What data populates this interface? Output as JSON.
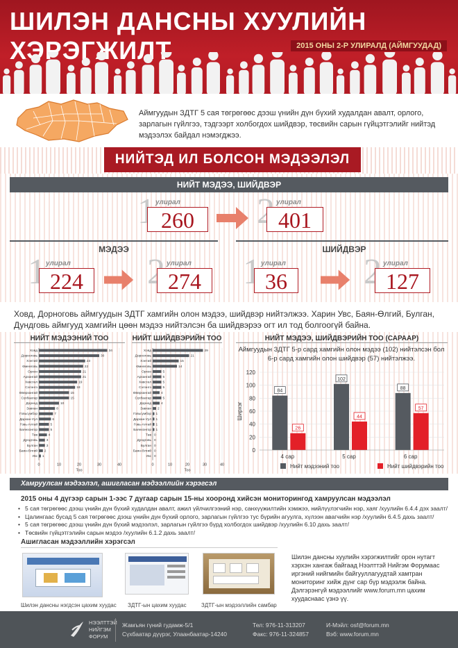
{
  "header": {
    "title": "ШИЛЭН ДАНСНЫ ХУУЛИЙН ХЭРЭГЖИЛТ",
    "subtitle": "2015 ОНЫ 2-Р УЛИРАЛД (АЙМГУУДАД)"
  },
  "intro": {
    "text": "Аймгуудын ЗДТГ 5 сая төгрөгөөс дээш үнийн дүн бүхий худалдан авалт, орлого, зарлагын гүйлгээ, тэдгээрт холбогдох шийдвэр, төсвийн сарын гүйцэтгэлийг нийтэд мэдээлэх байдал нэмэгджээ."
  },
  "banner": "НИЙТЭД ИЛ БОЛСОН МЭДЭЭЛЭЛ",
  "total": {
    "heading": "НИЙТ МЭДЭЭ, ШИЙДВЭР",
    "q1_digit": "1",
    "q2_digit": "2",
    "q_label": "улирал",
    "q1_value": "260",
    "q2_value": "401"
  },
  "news": {
    "heading": "МЭДЭЭ",
    "q1_value": "224",
    "q2_value": "274"
  },
  "decisions": {
    "heading": "ШИЙДВЭР",
    "q1_value": "36",
    "q2_value": "127"
  },
  "summary": "Ховд, Дорноговь аймгуудын ЗДТГ хамгийн олон мэдээ, шийдвэр нийтэлжээ. Харин Увс, Баян-Өлгий, Булган, Дундговь аймгууд хамгийн цөөн мэдээ нийтэлсэн ба шийдвэрээ огт ил тод болгоогүй байна.",
  "chart_news": {
    "title": "НИЙТ МЭДЭЭНИЙ ТОО",
    "axis_label": "Тоо"
  },
  "chart_decisions": {
    "title": "НИЙТ ШИЙДВЭРИЙН ТОО",
    "axis_label": "Тоо"
  },
  "chart_monthly": {
    "title": "НИЙТ МЭДЭЭ, ШИЙДВЭРИЙН ТОО (САРААР)",
    "note": "Аймгуудын ЗДТГ 5-р сард хамгийн олон мэдээ (102) нийтэлсэн бол 6-р сард хамгийн олон шийдвэр (57) нийтэлжээ.",
    "ylabel": "Ширхэг"
  },
  "chart_data": [
    {
      "type": "bar",
      "title": "НИЙТ МЭДЭЭНИЙ ТОО",
      "xlabel": "Тоо",
      "orientation": "horizontal",
      "categories": [
        "Ховд",
        "Дорноговь",
        "Хэнтий",
        "Өмнөговь",
        "Орхон",
        "Архангай",
        "Хөвсгөл",
        "Сэлэнгэ",
        "Өвөрхангай",
        "Сүхбаатар",
        "Дорнод",
        "Завхан",
        "Говьсүмбэр",
        "Дархан-Уул",
        "Говь-Алтай",
        "Баянхонгор",
        "Төв",
        "Дундговь",
        "Булган",
        "Баян-Өлгий",
        "Увс"
      ],
      "values": [
        34,
        30,
        23,
        22,
        21,
        21,
        19,
        18,
        15,
        15,
        10,
        8,
        7,
        6,
        5,
        5,
        4,
        3,
        3,
        2,
        1
      ],
      "xlim": [
        0,
        40
      ],
      "xticks": [
        0,
        10,
        20,
        30,
        40
      ]
    },
    {
      "type": "bar",
      "title": "НИЙТ ШИЙДВЭРИЙН ТОО",
      "xlabel": "Тоо",
      "orientation": "horizontal",
      "categories": [
        "Ховд",
        "Дорноговь",
        "Хэнтий",
        "Өмнөговь",
        "Орхон",
        "Архангай",
        "Хөвсгөл",
        "Сэлэнгэ",
        "Өвөрхангай",
        "Сүхбаатар",
        "Дорнод",
        "Завхан",
        "Говьсүмбэр",
        "Дархан-Уул",
        "Говь-Алтай",
        "Баянхонгор",
        "Төв",
        "Дундговь",
        "Булган",
        "Баян-Өлгий",
        "Увс"
      ],
      "values": [
        29,
        21,
        15,
        14,
        5,
        5,
        5,
        5,
        4,
        5,
        4,
        2,
        1,
        1,
        1,
        1,
        0,
        0,
        0,
        0,
        0
      ],
      "xlim": [
        0,
        40
      ],
      "xticks": [
        0,
        10,
        20,
        30,
        40
      ]
    },
    {
      "type": "bar",
      "title": "НИЙТ МЭДЭЭ, ШИЙДВЭРИЙН ТОО (САРААР)",
      "ylabel": "Ширхэг",
      "categories": [
        "4 сар",
        "5 сар",
        "6 сар"
      ],
      "series": [
        {
          "name": "Нийт мэдээний тоо",
          "values": [
            84,
            102,
            88
          ],
          "color": "#555a60"
        },
        {
          "name": "Нийт шийдвэрийн тоо",
          "values": [
            26,
            44,
            57
          ],
          "color": "#e32028"
        }
      ],
      "ylim": [
        0,
        120
      ],
      "yticks": [
        0,
        20,
        40,
        60,
        80,
        100,
        120
      ],
      "legend": "bottom"
    }
  ],
  "collected": {
    "bar_title": "Хамруулсан мэдээлэл, ашигласан мэдээллийн хэрэгсэл",
    "title": "2015 оны 4 дүгээр сарын 1-ээс 7 дугаар сарын 15-ны хооронд хийсэн мониторингод хамруулсан мэдээлэл",
    "items": [
      "5 сая төгрөгөөс дээш үнийн дүн бүхий худалдан авалт, ажил үйлчилгээний нэр, санхүүжилтийн хэмжээ, нийлүүлэгчийн нэр, хаяг /хуулийн 6.4.4 дэх заалт/",
      "Цалингаас бусад 5 сая төгрөгөөс дээш үнийн дүн бүхий орлого, зарлагын гүйлгээ тус бүрийн агуулга, хүлээн авагчийн нэр /хуулийн 6.4.5 дахь заалт/",
      "5 сая төгрөгөөс дээш үнийн дүн бүхий мэдээлэл, зарлагын гүйлгээ бүрд холбогдох шийдвэр /хуулийн 6.10 дахь заалт/",
      "Төсвийн гүйцэтгэлийн сарын мэдээ /хуулийн 6.1.2 дахь заалт/"
    ]
  },
  "used": {
    "title": "Ашигласан мэдээллийн хэрэгсэл",
    "captions": [
      "Шилэн дансны нэгдсэн цахим хуудас",
      "ЗДТГ-ын цахим хуудас",
      "ЗДТГ-ын мэдээллийн самбар"
    ],
    "text": "Шилэн дансны хуулийн хэрэгжилтийг орон нутагт хэрхэн хангаж байгаад Нээлттэй Нийгэм Форумаас иргэний нийгмийн байгууллагуудтай хамтран мониторинг хийж дүнг сар бүр мэдээлж байна. Дэлгэрэнгүй мэдээллийг www.forum.mn цахим хуудаснаас үзнэ үү."
  },
  "footer": {
    "org_line1": "НЭЭЛТТЭЙ",
    "org_line2": "НИЙГЭМ",
    "org_line3": "ФОРУМ",
    "address1": "Жамъян гүний гудамж-5/1",
    "address2": "Сүхбаатар дүүрэг, Улаанбаатар-14240",
    "tel": "Тел: 976-11-313207",
    "fax": "Факс: 976-11-324857",
    "email": "И-Мэйл: osf@forum.mn",
    "web": "Вэб: www.forum.mn"
  },
  "colors": {
    "brand_red": "#b01b23",
    "bar_gray": "#555a60",
    "bar_red": "#e32028",
    "map_orange": "#f5a862"
  }
}
